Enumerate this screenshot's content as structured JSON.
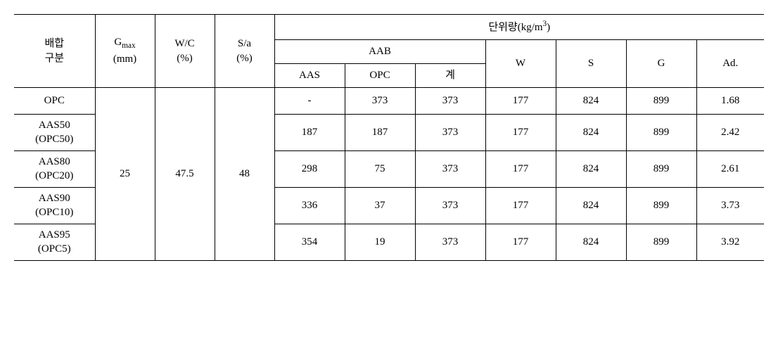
{
  "header": {
    "col1_line1": "배합",
    "col1_line2": "구분",
    "col2_symbol": "G",
    "col2_sub": "max",
    "col2_unit": "(mm)",
    "col3_line1": "W/C",
    "col3_line2": "(%)",
    "col4_line1": "S/a",
    "col4_line2": "(%)",
    "group_label_prefix": "단위량(kg/m",
    "group_label_sup": "3",
    "group_label_suffix": ")",
    "aab": "AAB",
    "aas": "AAS",
    "opc": "OPC",
    "gye": "계",
    "w": "W",
    "s": "S",
    "g": "G",
    "ad": "Ad."
  },
  "shared": {
    "gmax": "25",
    "wc": "47.5",
    "sa": "48"
  },
  "rows": [
    {
      "label_line1": "OPC",
      "label_line2": "",
      "aas": "-",
      "opc": "373",
      "gye": "373",
      "w": "177",
      "s": "824",
      "g": "899",
      "ad": "1.68"
    },
    {
      "label_line1": "AAS50",
      "label_line2": "(OPC50)",
      "aas": "187",
      "opc": "187",
      "gye": "373",
      "w": "177",
      "s": "824",
      "g": "899",
      "ad": "2.42"
    },
    {
      "label_line1": "AAS80",
      "label_line2": "(OPC20)",
      "aas": "298",
      "opc": "75",
      "gye": "373",
      "w": "177",
      "s": "824",
      "g": "899",
      "ad": "2.61"
    },
    {
      "label_line1": "AAS90",
      "label_line2": "(OPC10)",
      "aas": "336",
      "opc": "37",
      "gye": "373",
      "w": "177",
      "s": "824",
      "g": "899",
      "ad": "3.73"
    },
    {
      "label_line1": "AAS95",
      "label_line2": "(OPC5)",
      "aas": "354",
      "opc": "19",
      "gye": "373",
      "w": "177",
      "s": "824",
      "g": "899",
      "ad": "3.92"
    }
  ],
  "style": {
    "col_widths": {
      "c1": 115,
      "c2": 85,
      "c3": 85,
      "c4": 85,
      "c5": 100,
      "c6": 100,
      "c7": 100,
      "c8": 100,
      "c9": 100,
      "c10": 100,
      "c11": 96
    }
  }
}
